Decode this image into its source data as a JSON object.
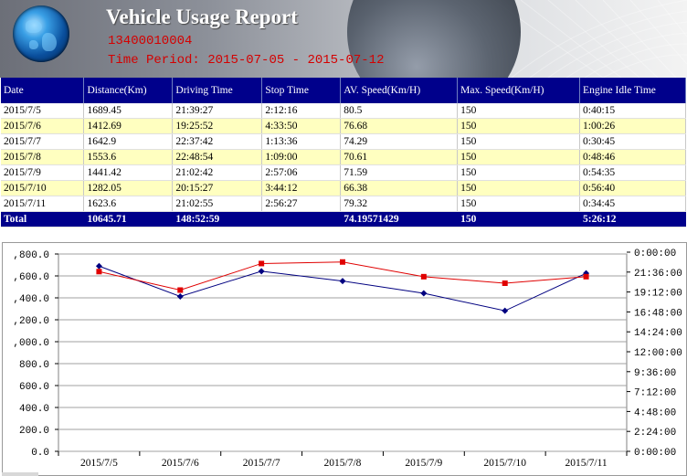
{
  "header": {
    "title": "Vehicle Usage Report",
    "phone": "13400010004",
    "period_label": "Time Period:",
    "period_value": "2015-07-05 - 2015-07-12"
  },
  "table": {
    "columns": [
      "Date",
      "Distance(Km)",
      "Driving Time",
      "Stop Time",
      "AV. Speed(Km/H)",
      "Max. Speed(Km/H)",
      "Engine Idle Time"
    ],
    "rows": [
      [
        "2015/7/5",
        "1689.45",
        "21:39:27",
        "2:12:16",
        "80.5",
        "150",
        "0:40:15"
      ],
      [
        "2015/7/6",
        "1412.69",
        "19:25:52",
        "4:33:50",
        "76.68",
        "150",
        "1:00:26"
      ],
      [
        "2015/7/7",
        "1642.9",
        "22:37:42",
        "1:13:36",
        "74.29",
        "150",
        "0:30:45"
      ],
      [
        "2015/7/8",
        "1553.6",
        "22:48:54",
        "1:09:00",
        "70.61",
        "150",
        "0:48:46"
      ],
      [
        "2015/7/9",
        "1441.42",
        "21:02:42",
        "2:57:06",
        "71.59",
        "150",
        "0:54:35"
      ],
      [
        "2015/7/10",
        "1282.05",
        "20:15:27",
        "3:44:12",
        "66.38",
        "150",
        "0:56:40"
      ],
      [
        "2015/7/11",
        "1623.6",
        "21:02:55",
        "2:56:27",
        "79.32",
        "150",
        "0:34:45"
      ]
    ],
    "total": [
      "Total",
      "10645.71",
      "148:52:59",
      "",
      "74.19571429",
      "150",
      "5:26:12"
    ]
  },
  "chart_data": {
    "type": "line",
    "categories": [
      "2015/7/5",
      "2015/7/6",
      "2015/7/7",
      "2015/7/8",
      "2015/7/9",
      "2015/7/10",
      "2015/7/11"
    ],
    "series": [
      {
        "axis": "left",
        "color": "#000080",
        "marker": "diamond",
        "values": [
          1689.45,
          1412.69,
          1642.9,
          1553.6,
          1441.42,
          1282.05,
          1623.6
        ]
      },
      {
        "axis": "right",
        "color": "#e00000",
        "marker": "square",
        "values": [
          "21:39:27",
          "19:25:52",
          "22:37:42",
          "22:48:54",
          "21:02:42",
          "20:15:27",
          "21:02:55"
        ]
      }
    ],
    "left_ticks": [
      ",800.0",
      ",600.0",
      ",400.0",
      ",200.0",
      ",000.0",
      "800.0",
      "600.0",
      "400.0",
      "200.0",
      "0.0"
    ],
    "right_ticks": [
      "0:00:00",
      "21:36:00",
      "19:12:00",
      "16:48:00",
      "14:24:00",
      "12:00:00",
      "9:36:00",
      "7:12:00",
      "4:48:00",
      "2:24:00",
      "0:00:00"
    ],
    "ylim_left": [
      0,
      1800
    ],
    "ylim_right_hours": [
      0,
      24
    ],
    "grid": true
  }
}
